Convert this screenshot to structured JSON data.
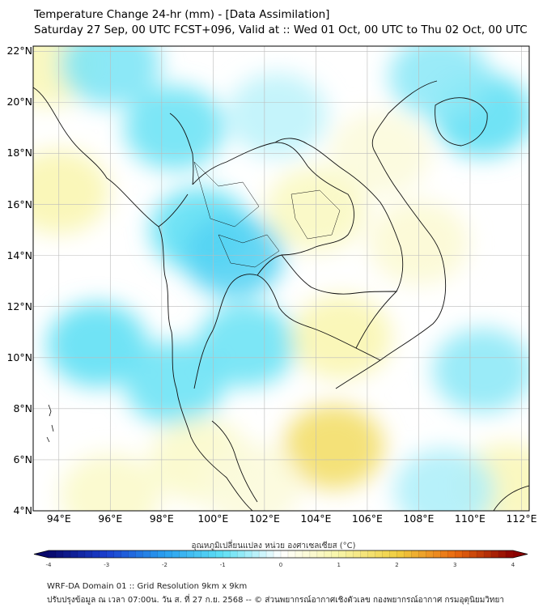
{
  "header": {
    "title": "Temperature Change 24-hr (mm) - [Data Assimilation]",
    "subtitle": "Saturday 27 Sep, 00 UTC FCST+096, Valid at :: Wed 01 Oct, 00 UTC to Thu 02 Oct, 00 UTC"
  },
  "axes": {
    "lat_labels": [
      "22°N",
      "20°N",
      "18°N",
      "16°N",
      "14°N",
      "12°N",
      "10°N",
      "8°N",
      "6°N",
      "4°N"
    ],
    "lon_labels": [
      "94°E",
      "96°E",
      "98°E",
      "100°E",
      "102°E",
      "104°E",
      "106°E",
      "108°E",
      "110°E",
      "112°E"
    ]
  },
  "colorbar": {
    "label": "อุณหภูมิเปลี่ยนแปลง หน่วย องศาเซลเซียส (°C)",
    "ticks": [
      "-4",
      "-3",
      "-2",
      "-1",
      "0",
      "1",
      "2",
      "3",
      "4"
    ],
    "min": -4,
    "max": 4,
    "colors": [
      "#08086b",
      "#1b3fd0",
      "#2aa0f0",
      "#5fe0f4",
      "#ffffff",
      "#f8f5a8",
      "#f0cf40",
      "#ea6a10",
      "#8a0000"
    ]
  },
  "footer": {
    "line1": "WRF-DA Domain 01 :: Grid Resolution 9km x 9km",
    "line2": "ปรับปรุงข้อมูล ณ เวลา 07:00น. วัน ส. ที่ 27 ก.ย. 2568 -- © ส่วนพยากรณ์อากาศเชิงตัวเลข กองพยากรณ์อากาศ กรมอุตุนิยมวิทยา"
  },
  "map_data": {
    "extent": {
      "lon_min": 93,
      "lon_max": 112.3,
      "lat_min": 4,
      "lat_max": 22.2
    },
    "grid": "on",
    "field_anomalies_degC": [
      {
        "lon": 94.0,
        "lat": 16.5,
        "value": 0.9
      },
      {
        "lon": 93.6,
        "lat": 21.5,
        "value": 0.8
      },
      {
        "lon": 96.0,
        "lat": 21.5,
        "value": -0.8
      },
      {
        "lon": 98.5,
        "lat": 19.0,
        "value": -0.9
      },
      {
        "lon": 99.5,
        "lat": 15.0,
        "value": -1.0
      },
      {
        "lon": 100.8,
        "lat": 14.0,
        "value": -1.2
      },
      {
        "lon": 95.5,
        "lat": 10.5,
        "value": -1.0
      },
      {
        "lon": 98.5,
        "lat": 9.0,
        "value": -0.9
      },
      {
        "lon": 101.3,
        "lat": 10.5,
        "value": -0.9
      },
      {
        "lon": 104.0,
        "lat": 15.8,
        "value": 0.7
      },
      {
        "lon": 105.0,
        "lat": 10.8,
        "value": 0.9
      },
      {
        "lon": 104.7,
        "lat": 6.5,
        "value": 1.6
      },
      {
        "lon": 108.0,
        "lat": 14.5,
        "value": 0.5
      },
      {
        "lon": 110.5,
        "lat": 19.5,
        "value": -1.0
      },
      {
        "lon": 108.8,
        "lat": 21.0,
        "value": -0.7
      },
      {
        "lon": 110.5,
        "lat": 9.5,
        "value": -0.7
      },
      {
        "lon": 111.5,
        "lat": 5.0,
        "value": 0.8
      },
      {
        "lon": 96.0,
        "lat": 4.6,
        "value": 0.6
      },
      {
        "lon": 109.0,
        "lat": 4.8,
        "value": -0.5
      },
      {
        "lon": 102.5,
        "lat": 19.5,
        "value": -0.4
      },
      {
        "lon": 106.5,
        "lat": 18.0,
        "value": 0.4
      },
      {
        "lon": 99.5,
        "lat": 6.0,
        "value": 0.6
      },
      {
        "lon": 101.5,
        "lat": 5.0,
        "value": 0.4
      }
    ]
  }
}
